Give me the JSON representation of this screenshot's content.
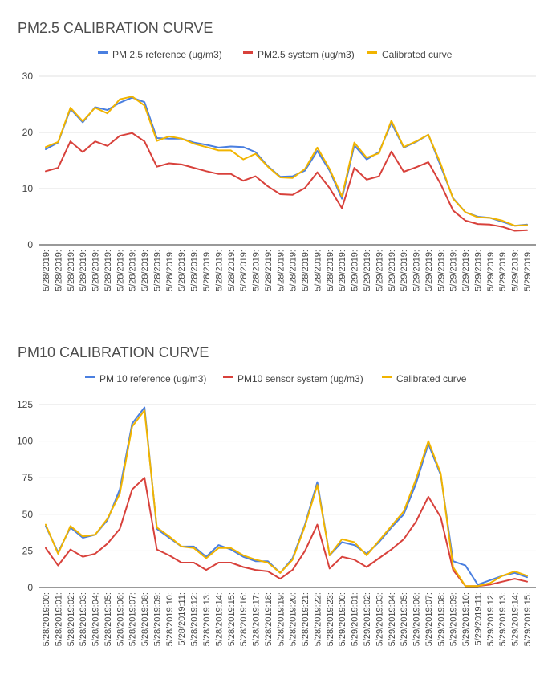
{
  "chart_data": [
    {
      "type": "line",
      "title": "PM2.5 CALIBRATION CURVE",
      "xlabel": "",
      "ylabel": "",
      "ylim": [
        0,
        30
      ],
      "yticks": [
        0,
        10,
        20,
        30
      ],
      "grid": true,
      "legend": "top",
      "x": [
        "5/28/2019:",
        "5/28/2019:",
        "5/28/2019:",
        "5/28/2019:",
        "5/28/2019:",
        "5/28/2019:",
        "5/28/2019:",
        "5/28/2019:",
        "5/28/2019:",
        "5/28/2019:",
        "5/28/2019:",
        "5/28/2019:",
        "5/28/2019:",
        "5/28/2019:",
        "5/28/2019:",
        "5/28/2019:",
        "5/28/2019:",
        "5/28/2019:",
        "5/28/2019:",
        "5/28/2019:",
        "5/28/2019:",
        "5/28/2019:",
        "5/28/2019:",
        "5/28/2019:",
        "5/29/2019:",
        "5/29/2019:",
        "5/29/2019:",
        "5/29/2019:",
        "5/29/2019:",
        "5/29/2019:",
        "5/29/2019:",
        "5/29/2019:",
        "5/29/2019:",
        "5/29/2019:",
        "5/29/2019:",
        "5/29/2019:",
        "5/29/2019:",
        "5/29/2019:",
        "5/29/2019:",
        "5/29/2019:"
      ],
      "series": [
        {
          "name": "PM 2.5 reference (ug/m3)",
          "color": "#4a7fe0",
          "values": [
            17.0,
            18.2,
            24.2,
            21.8,
            24.5,
            24.0,
            25.3,
            26.2,
            25.4,
            19.0,
            18.9,
            18.9,
            18.2,
            17.8,
            17.3,
            17.5,
            17.4,
            16.5,
            14.0,
            12.1,
            12.2,
            13.2,
            16.7,
            13.2,
            8.2,
            17.7,
            15.2,
            16.5,
            21.7,
            17.3,
            18.3,
            19.6,
            14.0,
            8.3,
            5.8,
            5.0,
            4.8,
            4.1,
            3.4,
            3.6
          ]
        },
        {
          "name": "PM2.5 system (ug/m3)",
          "color": "#d8413b",
          "values": [
            13.1,
            13.7,
            18.4,
            16.5,
            18.4,
            17.6,
            19.4,
            19.9,
            18.4,
            13.9,
            14.5,
            14.3,
            13.7,
            13.1,
            12.6,
            12.6,
            11.4,
            12.2,
            10.4,
            9.0,
            8.9,
            10.1,
            12.9,
            10.1,
            6.5,
            13.7,
            11.6,
            12.2,
            16.6,
            13.0,
            13.8,
            14.7,
            10.8,
            6.1,
            4.3,
            3.7,
            3.6,
            3.2,
            2.5,
            2.6
          ]
        },
        {
          "name": "Calibrated curve",
          "color": "#f1b400",
          "values": [
            17.4,
            18.3,
            24.4,
            22.0,
            24.4,
            23.4,
            25.9,
            26.4,
            24.8,
            18.5,
            19.3,
            18.9,
            18.0,
            17.4,
            16.8,
            16.8,
            15.2,
            16.2,
            13.9,
            12.0,
            11.9,
            13.5,
            17.3,
            13.5,
            8.6,
            18.2,
            15.5,
            16.3,
            22.1,
            17.4,
            18.4,
            19.6,
            14.4,
            8.2,
            5.8,
            4.9,
            4.8,
            4.3,
            3.4,
            3.5
          ]
        }
      ]
    },
    {
      "type": "line",
      "title": "PM10 CALIBRATION CURVE",
      "xlabel": "",
      "ylabel": "",
      "ylim": [
        0,
        125
      ],
      "yticks": [
        0,
        25,
        50,
        75,
        100,
        125
      ],
      "grid": true,
      "legend": "top",
      "x": [
        "5/28/2019:00:",
        "5/28/2019:01:",
        "5/28/2019:02:",
        "5/28/2019:03:",
        "5/28/2019:04:",
        "5/28/2019:05:",
        "5/28/2019:06:",
        "5/28/2019:07:",
        "5/28/2019:08:",
        "5/28/2019:09:",
        "5/28/2019:10:",
        "5/28/2019:11:",
        "5/28/2019:12:",
        "5/28/2019:13:",
        "5/28/2019:14:",
        "5/28/2019:15:",
        "5/28/2019:16:",
        "5/28/2019:17:",
        "5/28/2019:18:",
        "5/28/2019:19:",
        "5/28/2019:20:",
        "5/28/2019:21:",
        "5/28/2019:22:",
        "5/28/2019:23:",
        "5/29/2019:00:",
        "5/29/2019:01:",
        "5/29/2019:02:",
        "5/29/2019:03:",
        "5/29/2019:04:",
        "5/29/2019:05:",
        "5/29/2019:06:",
        "5/29/2019:07:",
        "5/29/2019:08:",
        "5/29/2019:09:",
        "5/29/2019:10:",
        "5/29/2019:11:",
        "5/29/2019:12:",
        "5/29/2019:13:",
        "5/29/2019:14:",
        "5/29/2019:15:"
      ],
      "series": [
        {
          "name": "PM 10 reference (ug/m3)",
          "color": "#4a7fe0",
          "values": [
            42,
            24,
            41,
            34,
            36,
            46,
            67,
            112,
            123,
            40,
            34,
            28,
            28,
            21,
            29,
            26,
            21,
            18,
            18,
            10,
            20,
            43,
            72,
            22,
            31,
            29,
            23,
            31,
            41,
            50,
            71,
            98,
            77,
            18,
            15,
            2,
            5,
            8,
            10,
            7
          ]
        },
        {
          "name": "PM10 sensor system (ug/m3)",
          "color": "#d8413b",
          "values": [
            27,
            15,
            26,
            21,
            23,
            30,
            40,
            67,
            75,
            26,
            22,
            17,
            17,
            12,
            17,
            17,
            14,
            12,
            11,
            6,
            12,
            25,
            43,
            13,
            21,
            19,
            14,
            20,
            26,
            33,
            45,
            62,
            48,
            12,
            1,
            1,
            2,
            4,
            6,
            4
          ]
        },
        {
          "name": "Calibrated curve",
          "color": "#f1b400",
          "values": [
            43,
            23,
            42,
            35,
            36,
            47,
            64,
            110,
            121,
            41,
            35,
            28,
            27,
            20,
            27,
            27,
            22,
            19,
            17,
            10,
            19,
            42,
            70,
            22,
            33,
            31,
            22,
            32,
            42,
            52,
            74,
            100,
            78,
            14,
            1,
            1,
            3,
            8,
            11,
            8
          ]
        }
      ]
    }
  ]
}
